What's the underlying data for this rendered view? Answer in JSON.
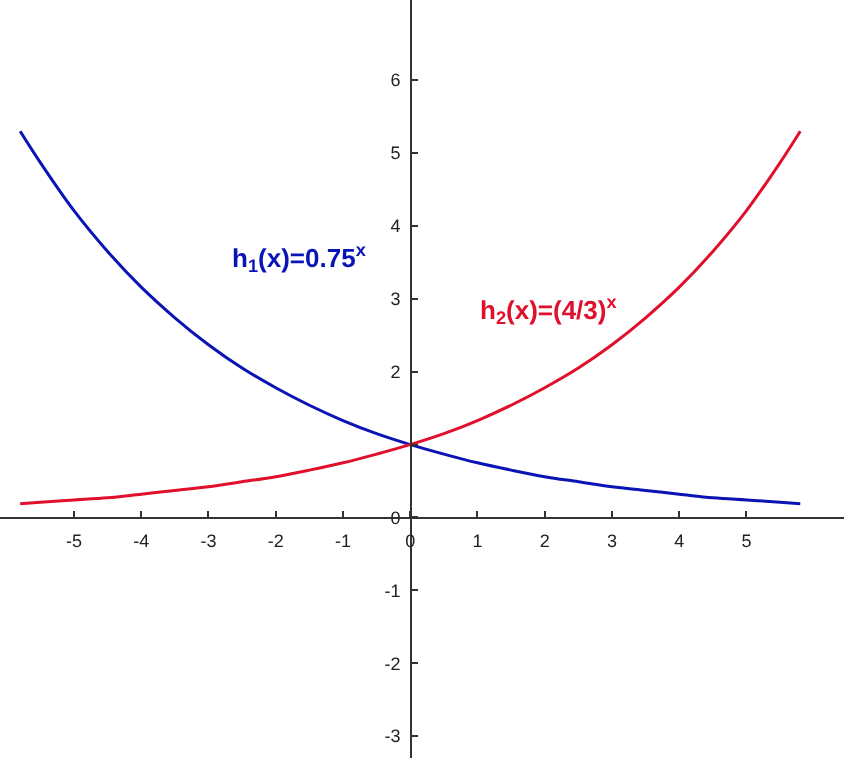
{
  "chart_data": {
    "type": "line",
    "x": [
      -5.8,
      -5.5,
      -5,
      -4.5,
      -4,
      -3.5,
      -3,
      -2.5,
      -2,
      -1.5,
      -1,
      -0.5,
      0,
      0.5,
      1,
      1.5,
      2,
      2.5,
      3,
      3.5,
      4,
      4.5,
      5,
      5.5,
      5.8
    ],
    "series": [
      {
        "color": "#0a14b4",
        "values": [
          5.3,
          4.87,
          4.21,
          3.65,
          3.16,
          2.74,
          2.37,
          2.05,
          1.78,
          1.54,
          1.33,
          1.15,
          1,
          0.87,
          0.75,
          0.65,
          0.56,
          0.49,
          0.42,
          0.37,
          0.32,
          0.27,
          0.24,
          0.21,
          0.19
        ]
      },
      {
        "color": "#e0102c",
        "values": [
          0.19,
          0.21,
          0.24,
          0.27,
          0.32,
          0.37,
          0.42,
          0.49,
          0.56,
          0.65,
          0.75,
          0.87,
          1,
          1.15,
          1.33,
          1.54,
          1.78,
          2.05,
          2.37,
          2.74,
          3.16,
          3.65,
          4.21,
          4.87,
          5.3
        ]
      }
    ],
    "annotations": [
      "h$_{1}$(x)=0.75$^{x}$",
      "h$_{2}$(x)=(4/3)$^{x}$"
    ],
    "xlim": [
      -6.1,
      6.45
    ],
    "ylim": [
      -3.3,
      7.1
    ],
    "xticks": [
      -5,
      -4,
      -3,
      -2,
      -1,
      0,
      1,
      2,
      3,
      4,
      5
    ],
    "yticks": [
      -3,
      -2,
      -1,
      0,
      {
        "value": 1,
        "label": null
      },
      2,
      3,
      4,
      5,
      6
    ],
    "marker": "none",
    "line_style": "solid"
  }
}
